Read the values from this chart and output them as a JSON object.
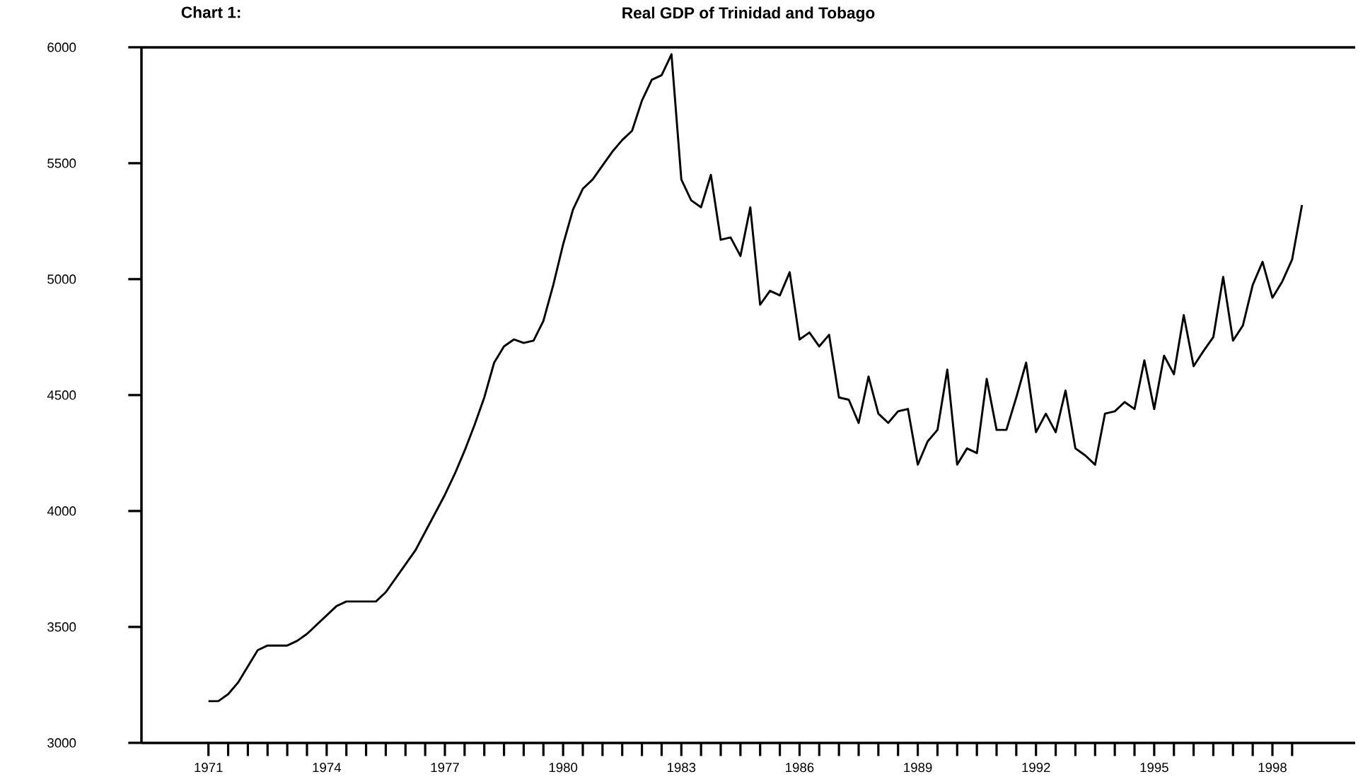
{
  "chart_data": {
    "type": "line",
    "title": "Real GDP of Trinidad and Tobago",
    "annotations": [
      "Chart 1:"
    ],
    "x": [
      1971.0,
      1971.25,
      1971.5,
      1971.75,
      1972.0,
      1972.25,
      1972.5,
      1972.75,
      1973.0,
      1973.25,
      1973.5,
      1973.75,
      1974.0,
      1974.25,
      1974.5,
      1974.75,
      1975.0,
      1975.25,
      1975.5,
      1975.75,
      1976.0,
      1976.25,
      1976.5,
      1976.75,
      1977.0,
      1977.25,
      1977.5,
      1977.75,
      1978.0,
      1978.25,
      1978.5,
      1978.75,
      1979.0,
      1979.25,
      1979.5,
      1979.75,
      1980.0,
      1980.25,
      1980.5,
      1980.75,
      1981.0,
      1981.25,
      1981.5,
      1981.75,
      1982.0,
      1982.25,
      1982.5,
      1982.75,
      1983.0,
      1983.25,
      1983.5,
      1983.75,
      1984.0,
      1984.25,
      1984.5,
      1984.75,
      1985.0,
      1985.25,
      1985.5,
      1985.75,
      1986.0,
      1986.25,
      1986.5,
      1986.75,
      1987.0,
      1987.25,
      1987.5,
      1987.75,
      1988.0,
      1988.25,
      1988.5,
      1988.75,
      1989.0,
      1989.25,
      1989.5,
      1989.75,
      1990.0,
      1990.25,
      1990.5,
      1990.75,
      1991.0,
      1991.25,
      1991.5,
      1991.75,
      1992.0,
      1992.25,
      1992.5,
      1992.75,
      1993.0,
      1993.25,
      1993.5,
      1993.75,
      1994.0,
      1994.25,
      1994.5,
      1994.75,
      1995.0,
      1995.25,
      1995.5,
      1995.75,
      1996.0,
      1996.25,
      1996.5,
      1996.75,
      1997.0,
      1997.25,
      1997.5,
      1997.75,
      1998.0,
      1998.25,
      1998.5,
      1998.75
    ],
    "series": [
      {
        "color": "#000000",
        "values": [
          3180,
          3180,
          3210,
          3260,
          3330,
          3400,
          3420,
          3420,
          3420,
          3440,
          3470,
          3510,
          3550,
          3590,
          3610,
          3610,
          3610,
          3610,
          3650,
          3710,
          3770,
          3830,
          3910,
          3990,
          4070,
          4160,
          4260,
          4370,
          4490,
          4640,
          4710,
          4740,
          4725,
          4735,
          4820,
          4975,
          5150,
          5300,
          5390,
          5430,
          5490,
          5550,
          5600,
          5640,
          5770,
          5860,
          5880,
          5970,
          5430,
          5340,
          5310,
          5450,
          5170,
          5180,
          5100,
          5310,
          4890,
          4950,
          4930,
          5030,
          4740,
          4770,
          4710,
          4760,
          4490,
          4480,
          4380,
          4580,
          4420,
          4380,
          4430,
          4440,
          4200,
          4300,
          4350,
          4610,
          4200,
          4270,
          4250,
          4570,
          4350,
          4350,
          4490,
          4640,
          4340,
          4420,
          4340,
          4520,
          4270,
          4240,
          4200,
          4420,
          4430,
          4470,
          4440,
          4650,
          4440,
          4670,
          4590,
          4845,
          4625,
          4690,
          4750,
          5010,
          4735,
          4800,
          4975,
          5075,
          4920,
          4990,
          5085,
          5320
        ]
      }
    ],
    "xlim": [
      1969.3,
      2000.1
    ],
    "xticks": [
      1971,
      {
        "value": 1971.5,
        "label": null
      },
      {
        "value": 1972,
        "label": null
      },
      {
        "value": 1972.5,
        "label": null
      },
      {
        "value": 1973,
        "label": null
      },
      {
        "value": 1973.5,
        "label": null
      },
      1974,
      {
        "value": 1974.5,
        "label": null
      },
      {
        "value": 1975,
        "label": null
      },
      {
        "value": 1975.5,
        "label": null
      },
      {
        "value": 1976,
        "label": null
      },
      {
        "value": 1976.5,
        "label": null
      },
      1977,
      {
        "value": 1977.5,
        "label": null
      },
      {
        "value": 1978,
        "label": null
      },
      {
        "value": 1978.5,
        "label": null
      },
      {
        "value": 1979,
        "label": null
      },
      {
        "value": 1979.5,
        "label": null
      },
      1980,
      {
        "value": 1980.5,
        "label": null
      },
      {
        "value": 1981,
        "label": null
      },
      {
        "value": 1981.5,
        "label": null
      },
      {
        "value": 1982,
        "label": null
      },
      {
        "value": 1982.5,
        "label": null
      },
      1983,
      {
        "value": 1983.5,
        "label": null
      },
      {
        "value": 1984,
        "label": null
      },
      {
        "value": 1984.5,
        "label": null
      },
      {
        "value": 1985,
        "label": null
      },
      {
        "value": 1985.5,
        "label": null
      },
      1986,
      {
        "value": 1986.5,
        "label": null
      },
      {
        "value": 1987,
        "label": null
      },
      {
        "value": 1987.5,
        "label": null
      },
      {
        "value": 1988,
        "label": null
      },
      {
        "value": 1988.5,
        "label": null
      },
      1989,
      {
        "value": 1989.5,
        "label": null
      },
      {
        "value": 1990,
        "label": null
      },
      {
        "value": 1990.5,
        "label": null
      },
      {
        "value": 1991,
        "label": null
      },
      {
        "value": 1991.5,
        "label": null
      },
      1992,
      {
        "value": 1992.5,
        "label": null
      },
      {
        "value": 1993,
        "label": null
      },
      {
        "value": 1993.5,
        "label": null
      },
      {
        "value": 1994,
        "label": null
      },
      {
        "value": 1994.5,
        "label": null
      },
      1995,
      {
        "value": 1995.5,
        "label": null
      },
      {
        "value": 1996,
        "label": null
      },
      {
        "value": 1996.5,
        "label": null
      },
      {
        "value": 1997,
        "label": null
      },
      {
        "value": 1997.5,
        "label": null
      },
      1998,
      {
        "value": 1998.5,
        "label": null
      }
    ],
    "ylim": [
      3000,
      6000
    ],
    "yticks": [
      3000,
      3500,
      4000,
      4500,
      5000,
      5500,
      6000
    ],
    "marker": "none",
    "line_style": "solid"
  }
}
